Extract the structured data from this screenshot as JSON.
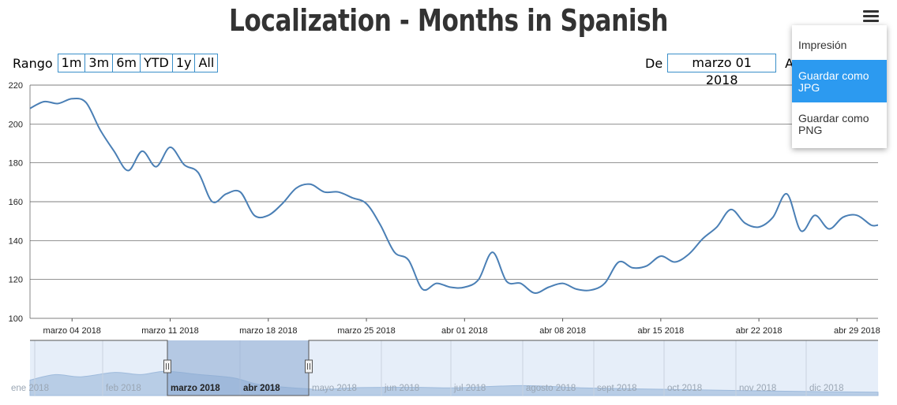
{
  "chart_data": {
    "type": "line",
    "title": "Localization - Months in Spanish",
    "ylim": [
      100,
      220
    ],
    "y_ticks": [
      100,
      120,
      140,
      160,
      180,
      200,
      220
    ],
    "x_tick_labels": [
      "marzo 04 2018",
      "marzo 11 2018",
      "marzo 18 2018",
      "marzo 25 2018",
      "abr 01 2018",
      "abr 08 2018",
      "abr 15 2018",
      "abr 22 2018",
      "abr 29 2018"
    ],
    "x_tick_days": [
      3,
      10,
      17,
      24,
      31,
      38,
      45,
      52,
      59
    ],
    "x_range_days": [
      0,
      60.5
    ],
    "series": [
      {
        "color": "#4a7fb5",
        "points": [
          [
            0,
            208
          ],
          [
            1,
            211.5
          ],
          [
            2,
            210.5
          ],
          [
            3,
            213
          ],
          [
            4,
            211
          ],
          [
            5,
            197
          ],
          [
            6,
            186
          ],
          [
            7,
            176
          ],
          [
            8,
            186
          ],
          [
            9,
            178
          ],
          [
            10,
            188
          ],
          [
            11,
            179
          ],
          [
            12,
            175
          ],
          [
            13,
            160
          ],
          [
            14,
            164
          ],
          [
            15,
            165
          ],
          [
            16,
            153
          ],
          [
            17,
            153
          ],
          [
            18,
            159
          ],
          [
            19,
            167
          ],
          [
            20,
            169
          ],
          [
            21,
            165
          ],
          [
            22,
            165
          ],
          [
            23,
            162
          ],
          [
            24,
            159
          ],
          [
            25,
            148
          ],
          [
            26,
            134
          ],
          [
            27,
            130
          ],
          [
            28,
            115
          ],
          [
            29,
            118
          ],
          [
            30,
            116
          ],
          [
            31,
            116
          ],
          [
            32,
            120
          ],
          [
            33,
            134
          ],
          [
            34,
            119
          ],
          [
            35,
            118
          ],
          [
            36,
            113
          ],
          [
            37,
            116
          ],
          [
            38,
            118
          ],
          [
            39,
            115
          ],
          [
            40,
            114.5
          ],
          [
            41,
            118
          ],
          [
            42,
            129
          ],
          [
            43,
            126
          ],
          [
            44,
            127
          ],
          [
            45,
            132
          ],
          [
            46,
            129
          ],
          [
            47,
            133
          ],
          [
            48,
            141
          ],
          [
            49,
            147
          ],
          [
            50,
            156
          ],
          [
            51,
            149
          ],
          [
            52,
            147
          ],
          [
            53,
            152
          ],
          [
            54,
            164
          ],
          [
            55,
            145
          ],
          [
            56,
            153
          ],
          [
            57,
            146
          ],
          [
            58,
            152
          ],
          [
            59,
            153
          ],
          [
            60,
            148
          ],
          [
            60.5,
            148
          ]
        ]
      }
    ]
  },
  "navigator": {
    "month_labels": [
      "ene 2018",
      "feb 2018",
      "marzo 2018",
      "abr 2018",
      "mayo 2018",
      "jun 2018",
      "jul 2018",
      "agosto 2018",
      "sept 2018",
      "oct 2018",
      "nov 2018",
      "dic 2018"
    ],
    "selected_range": [
      "marzo 2018",
      "mayo 2018"
    ]
  },
  "range_selector": {
    "label": "Rango",
    "buttons": [
      "1m",
      "3m",
      "6m",
      "YTD",
      "1y",
      "All"
    ]
  },
  "input_fields": {
    "from_label": "De",
    "from_value": "marzo 01 2018",
    "to_label": "A"
  },
  "export_menu": {
    "items": [
      "Impresión",
      "Guardar como JPG",
      "Guardar como PNG"
    ],
    "active_index": 1
  },
  "colors": {
    "line": "#4a7fb5",
    "navigator_fill": "#b8cde6",
    "navigator_mask": "#8aaad2",
    "menu_highlight": "#2c9af0",
    "input_border": "#3a8fc9"
  }
}
